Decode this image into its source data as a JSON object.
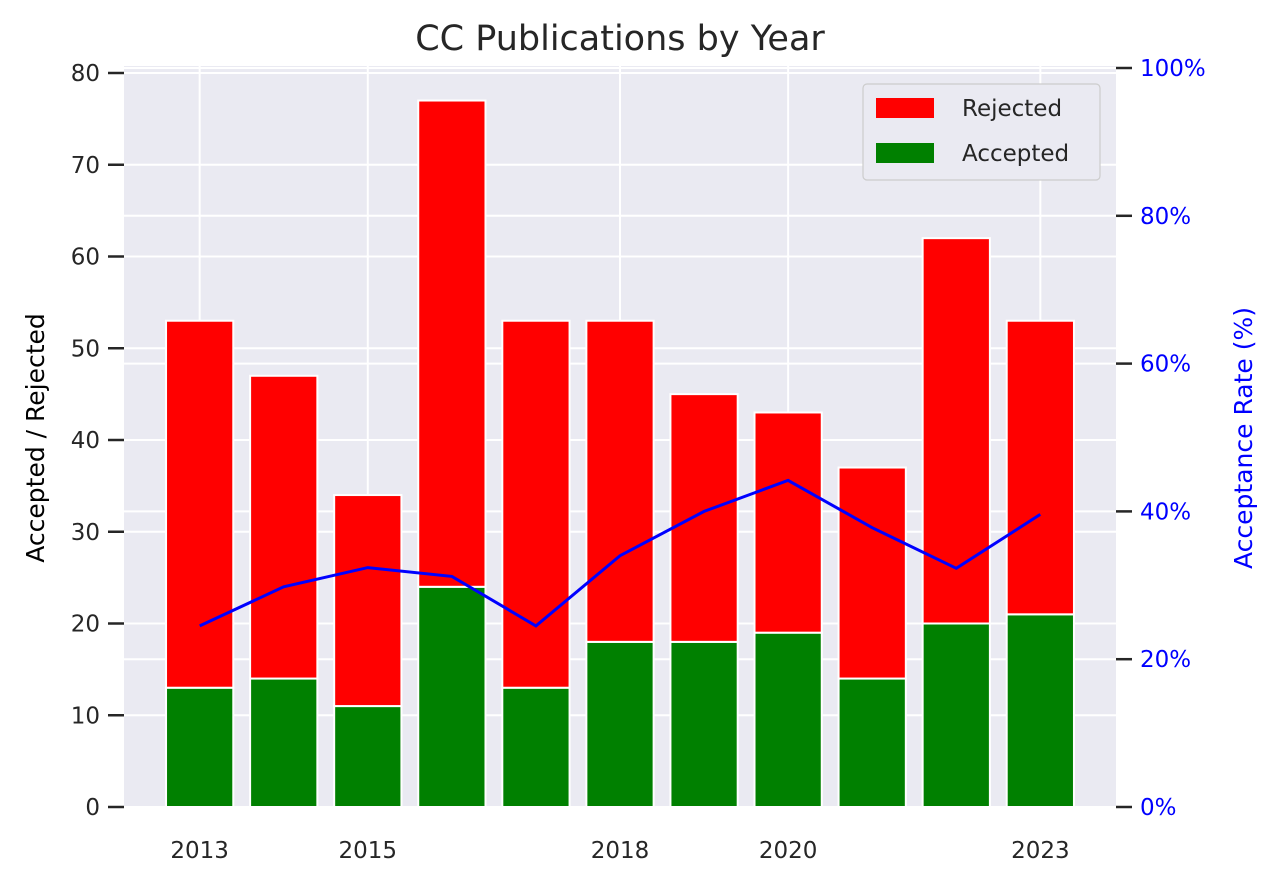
{
  "chart_data": {
    "type": "bar",
    "stacked": true,
    "title": "CC Publications by Year",
    "x": [
      2013,
      2014,
      2015,
      2016,
      2017,
      2018,
      2019,
      2020,
      2021,
      2022,
      2023
    ],
    "xtick_labels": [
      {
        "value": 2013,
        "label": "2013"
      },
      {
        "value": 2015,
        "label": "2015"
      },
      {
        "value": 2018,
        "label": "2018"
      },
      {
        "value": 2020,
        "label": "2020"
      },
      {
        "value": 2023,
        "label": "2023"
      }
    ],
    "ylabel": "Accepted / Rejected",
    "ylim": [
      0,
      80
    ],
    "yticks": [
      0,
      10,
      20,
      30,
      40,
      50,
      60,
      70,
      80
    ],
    "y2label": "Acceptance Rate (%)",
    "y2lim": [
      0,
      100
    ],
    "y2ticks": [
      0,
      20,
      40,
      60,
      80,
      100
    ],
    "y2tick_suffix": "%",
    "series": [
      {
        "name": "Accepted",
        "kind": "bar",
        "color": "#008000",
        "values": [
          13,
          14,
          11,
          24,
          13,
          18,
          18,
          19,
          14,
          20,
          21
        ]
      },
      {
        "name": "Rejected",
        "kind": "bar",
        "color": "#ff0000",
        "values": [
          40,
          33,
          23,
          53,
          40,
          35,
          27,
          24,
          23,
          42,
          32
        ]
      },
      {
        "kind": "line",
        "axis": "right",
        "color": "#0000ff",
        "values": [
          24.5,
          29.8,
          32.4,
          31.2,
          24.5,
          34.0,
          40.0,
          44.2,
          37.8,
          32.3,
          39.6
        ]
      }
    ],
    "legend": {
      "placement": "top-right",
      "entries": [
        "Rejected",
        "Accepted"
      ]
    },
    "grid": true,
    "colors": {
      "background": "#eaeaf2",
      "grid": "#ffffff",
      "right_axis": "#0000ff"
    }
  }
}
